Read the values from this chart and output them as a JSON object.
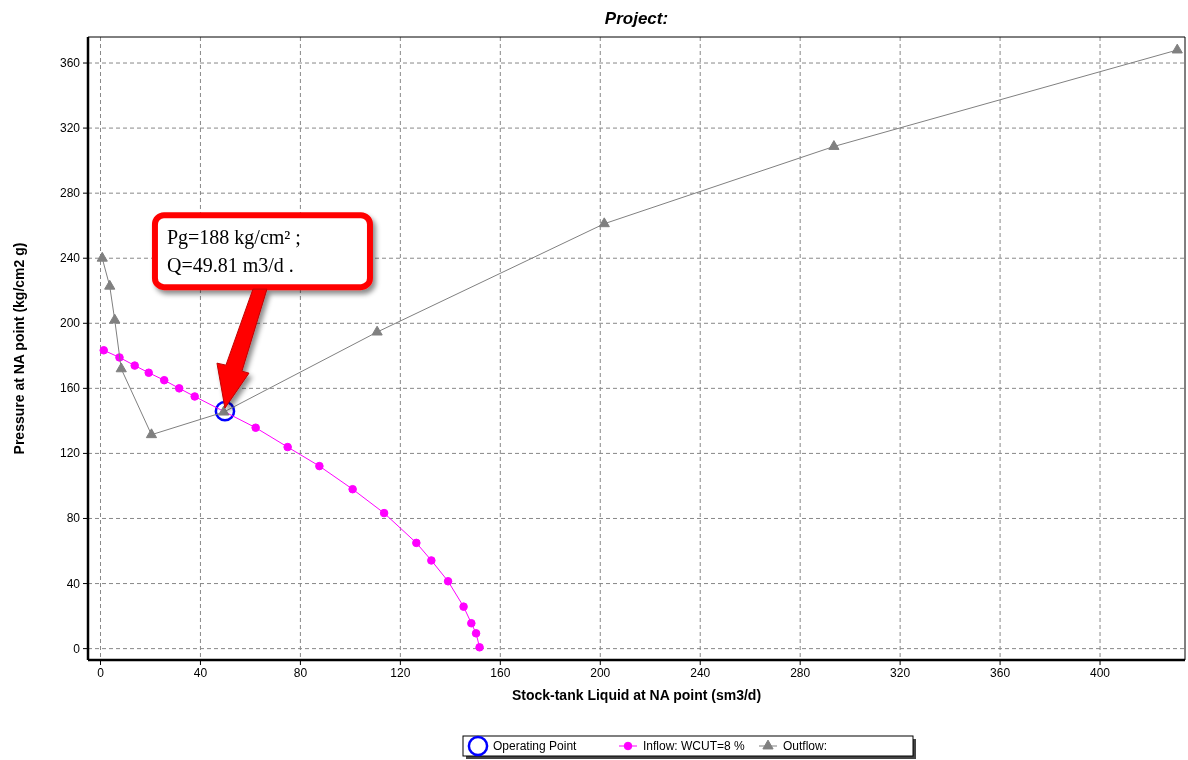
{
  "chart_data": {
    "type": "line",
    "title": "Project:",
    "xlabel": "Stock-tank Liquid at NA point (sm3/d)",
    "ylabel": "Pressure at NA point (kg/cm2 g)",
    "xlim": [
      -5,
      434
    ],
    "xticks": [
      0,
      40,
      80,
      120,
      160,
      200,
      240,
      280,
      320,
      360,
      400
    ],
    "ylim": [
      -7,
      376
    ],
    "yticks": [
      0,
      40,
      80,
      120,
      160,
      200,
      240,
      280,
      320,
      360
    ],
    "grid": true,
    "legend": "bottom",
    "line_style": "solid",
    "annotations": [
      "Pg=188 kg/cm² ;\nQ=49.81 m3/d ."
    ],
    "series": [
      {
        "name": "Operating Point",
        "type": "scatter",
        "marker": "circle",
        "color": "#0000ff",
        "x": [
          49.81
        ],
        "values": [
          146
        ]
      },
      {
        "name": "Inflow: WCUT=8 %",
        "marker": "circle",
        "color": "#ff00ff",
        "x": [
          1.3,
          7.6,
          13.7,
          19.3,
          25.5,
          31.5,
          37.7,
          49.3,
          62.1,
          74.9,
          87.6,
          100.9,
          113.5,
          126.4,
          132.4,
          139.1,
          145.3,
          148.4,
          150.3,
          151.7
        ],
        "values": [
          183.4,
          179,
          174,
          169.6,
          165,
          160,
          155,
          null,
          135.8,
          123.9,
          112.2,
          98,
          83.3,
          65,
          54.2,
          41.4,
          25.8,
          15.6,
          9.4,
          0.8
        ]
      },
      {
        "name": "Outflow:",
        "marker": "triangle",
        "color": "#808080",
        "x": [
          0.7,
          3.7,
          5.7,
          8.3,
          20.4,
          49.3,
          110.7,
          201.6,
          293.5,
          430.9
        ],
        "values": [
          240,
          222.8,
          202,
          172,
          131.5,
          145.4,
          194.6,
          261.2,
          308.7,
          368
        ]
      }
    ]
  }
}
